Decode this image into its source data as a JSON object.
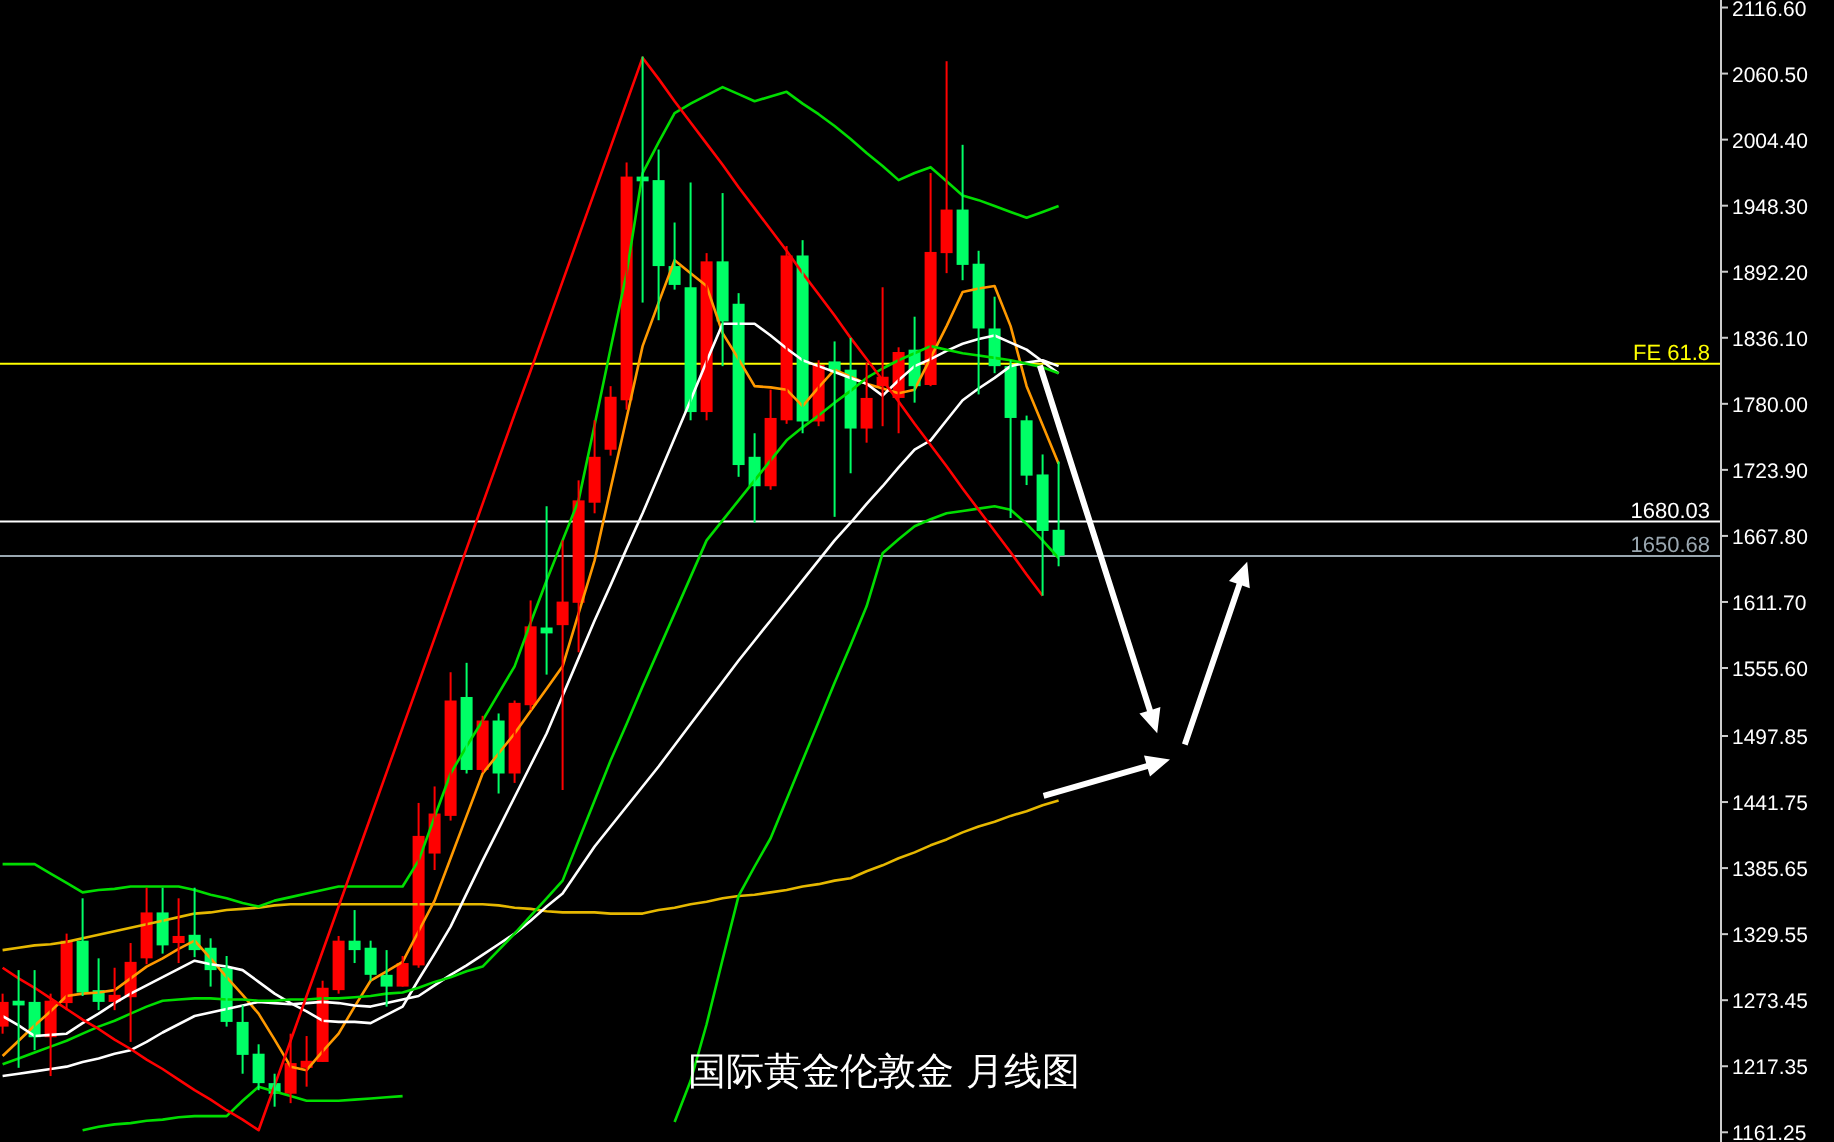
{
  "chart_data": {
    "type": "candlestick",
    "title": "国际黄金伦敦金  月线图",
    "categories": [
      null,
      null,
      null,
      null,
      null,
      null,
      null,
      null,
      null,
      null,
      null,
      null,
      null,
      null,
      null,
      null,
      null,
      null,
      null,
      null,
      null,
      null,
      null,
      null,
      null,
      null,
      null,
      null,
      null,
      null,
      null,
      null,
      null,
      null,
      null,
      null,
      null,
      null,
      null,
      null,
      null,
      null,
      null,
      null,
      null,
      null,
      null,
      null,
      null,
      null,
      null,
      null,
      null,
      null,
      null,
      null,
      null,
      null,
      null,
      null,
      null,
      null,
      null,
      null,
      null,
      null,
      null
    ],
    "ohlc": [
      [
        1251,
        1279,
        1245,
        1272
      ],
      [
        1273,
        1299,
        1216,
        1269
      ],
      [
        1272,
        1299,
        1231,
        1242
      ],
      [
        1242,
        1279,
        1209,
        1273
      ],
      [
        1271,
        1330,
        1265,
        1324
      ],
      [
        1324,
        1360,
        1277,
        1280
      ],
      [
        1282,
        1309,
        1265,
        1272
      ],
      [
        1272,
        1301,
        1265,
        1278
      ],
      [
        1276,
        1322,
        1238,
        1306
      ],
      [
        1309,
        1369,
        1304,
        1348
      ],
      [
        1348,
        1369,
        1313,
        1320
      ],
      [
        1322,
        1360,
        1305,
        1328
      ],
      [
        1329,
        1369,
        1310,
        1316
      ],
      [
        1318,
        1326,
        1285,
        1299
      ],
      [
        1301,
        1311,
        1251,
        1255
      ],
      [
        1255,
        1269,
        1211,
        1227
      ],
      [
        1228,
        1236,
        1197,
        1203
      ],
      [
        1203,
        1211,
        1183,
        1194
      ],
      [
        1194,
        1245,
        1186,
        1220
      ],
      [
        1216,
        1243,
        1200,
        1222
      ],
      [
        1221,
        1290,
        1221,
        1284
      ],
      [
        1282,
        1328,
        1279,
        1324
      ],
      [
        1324,
        1350,
        1305,
        1316
      ],
      [
        1318,
        1324,
        1290,
        1295
      ],
      [
        1295,
        1316,
        1268,
        1285
      ],
      [
        1285,
        1311,
        1285,
        1305
      ],
      [
        1303,
        1441,
        1301,
        1413
      ],
      [
        1398,
        1455,
        1384,
        1432
      ],
      [
        1430,
        1552,
        1426,
        1528
      ],
      [
        1531,
        1560,
        1466,
        1469
      ],
      [
        1469,
        1515,
        1467,
        1511
      ],
      [
        1511,
        1517,
        1449,
        1466
      ],
      [
        1466,
        1528,
        1458,
        1526
      ],
      [
        1524,
        1613,
        1520,
        1591
      ],
      [
        1590,
        1693,
        1550,
        1585
      ],
      [
        1592,
        1664,
        1452,
        1612
      ],
      [
        1611,
        1715,
        1569,
        1698
      ],
      [
        1696,
        1766,
        1687,
        1735
      ],
      [
        1741,
        1795,
        1736,
        1786
      ],
      [
        1783,
        1985,
        1775,
        1973
      ],
      [
        1973,
        2075,
        1866,
        1969
      ],
      [
        1970,
        1996,
        1851,
        1897
      ],
      [
        1897,
        1934,
        1877,
        1881
      ],
      [
        1879,
        1968,
        1766,
        1773
      ],
      [
        1773,
        1908,
        1766,
        1901
      ],
      [
        1901,
        1959,
        1812,
        1850
      ],
      [
        1865,
        1874,
        1718,
        1728
      ],
      [
        1735,
        1755,
        1679,
        1710
      ],
      [
        1710,
        1792,
        1707,
        1768
      ],
      [
        1766,
        1914,
        1763,
        1906
      ],
      [
        1906,
        1919,
        1755,
        1765
      ],
      [
        1765,
        1817,
        1761,
        1813
      ],
      [
        1816,
        1833,
        1684,
        1808
      ],
      [
        1809,
        1836,
        1721,
        1759
      ],
      [
        1759,
        1815,
        1747,
        1785
      ],
      [
        1795,
        1879,
        1761,
        1803
      ],
      [
        1785,
        1828,
        1755,
        1824
      ],
      [
        1826,
        1854,
        1781,
        1795
      ],
      [
        1796,
        1976,
        1795,
        1909
      ],
      [
        1908,
        2071,
        1891,
        1945
      ],
      [
        1945,
        2000,
        1885,
        1898
      ],
      [
        1899,
        1910,
        1788,
        1844
      ],
      [
        1844,
        1871,
        1806,
        1812
      ],
      [
        1812,
        1817,
        1683,
        1768
      ],
      [
        1766,
        1770,
        1711,
        1719
      ],
      [
        1720,
        1737,
        1617,
        1672
      ],
      [
        1673,
        1731,
        1642,
        1651
      ]
    ],
    "colors": [
      "#ff0000",
      "#00ff66",
      "#00ff66",
      "#ff0000",
      "#ff0000",
      "#00ff66",
      "#00ff66",
      "#ff0000",
      "#ff0000",
      "#ff0000",
      "#00ff66",
      "#ff0000",
      "#00ff66",
      "#00ff66",
      "#00ff66",
      "#00ff66",
      "#00ff66",
      "#00ff66",
      "#ff0000",
      "#ff0000",
      "#ff0000",
      "#ff0000",
      "#00ff66",
      "#00ff66",
      "#00ff66",
      "#ff0000",
      "#ff0000",
      "#ff0000",
      "#ff0000",
      "#00ff66",
      "#ff0000",
      "#00ff66",
      "#ff0000",
      "#ff0000",
      "#00ff66",
      "#ff0000",
      "#ff0000",
      "#ff0000",
      "#ff0000",
      "#ff0000",
      "#00ff66",
      "#00ff66",
      "#00ff66",
      "#00ff66",
      "#ff0000",
      "#00ff66",
      "#00ff66",
      "#00ff66",
      "#ff0000",
      "#ff0000",
      "#00ff66",
      "#ff0000",
      "#00ff66",
      "#00ff66",
      "#ff0000",
      "#ff0000",
      "#ff0000",
      "#00ff66",
      "#ff0000",
      "#ff0000",
      "#00ff66",
      "#00ff66",
      "#00ff66",
      "#00ff66",
      "#00ff66",
      "#00ff66",
      "#00ff66"
    ],
    "series": [
      {
        "type": "line",
        "color": "#e6b800",
        "values": [
          1316,
          1318,
          1320,
          1321,
          1323,
          1326,
          1329,
          1332,
          1335,
          1338,
          1341,
          1344,
          1347,
          1348,
          1350,
          1351,
          1352,
          1354,
          1355,
          1355,
          1355,
          1355,
          1355,
          1355,
          1355,
          1355,
          1355,
          1355,
          1355,
          1355,
          1355,
          1354,
          1352,
          1351,
          1349,
          1348,
          1348,
          1348,
          1347,
          1347,
          1347,
          1350,
          1352,
          1355,
          1357,
          1360,
          1362,
          1363,
          1365,
          1367,
          1370,
          1372,
          1375,
          1377,
          1383,
          1388,
          1394,
          1399,
          1405,
          1410,
          1416,
          1421,
          1425,
          1430,
          1434,
          1439,
          1443
        ]
      },
      {
        "type": "line",
        "color": "#ff9900",
        "values": [
          1226,
          1239,
          1252,
          1264,
          1277,
          1279,
          1280,
          1282,
          1292,
          1302,
          1309,
          1317,
          1324,
          1309,
          1293,
          1278,
          1262,
          1240,
          1217,
          1214,
          1230,
          1245,
          1268,
          1290,
          1298,
          1306,
          1332,
          1358,
          1394,
          1430,
          1466,
          1483,
          1500,
          1519,
          1538,
          1557,
          1602,
          1647,
          1708,
          1768,
          1829,
          1866,
          1902,
          1891,
          1880,
          1840,
          1818,
          1795,
          1794,
          1792,
          1778,
          1794,
          1809,
          1803,
          1797,
          1793,
          1789,
          1792,
          1819,
          1846,
          1875,
          1878,
          1880,
          1846,
          1795,
          1762,
          1729
        ]
      },
      {
        "type": "line",
        "color": "#ffffff",
        "values": [
          1260,
          1252,
          1243,
          1244,
          1245,
          1254,
          1262,
          1271,
          1279,
          1286,
          1293,
          1300,
          1307,
          1304,
          1302,
          1299,
          1289,
          1279,
          1271,
          1264,
          1256,
          1255,
          1255,
          1254,
          1261,
          1268,
          1291,
          1313,
          1336,
          1364,
          1392,
          1419,
          1446,
          1473,
          1500,
          1532,
          1564,
          1596,
          1626,
          1657,
          1687,
          1719,
          1751,
          1783,
          1816,
          1848,
          1848,
          1848,
          1838,
          1827,
          1817,
          1812,
          1807,
          1802,
          1797,
          1787,
          1800,
          1812,
          1818,
          1825,
          1831,
          1835,
          1838,
          1832,
          1826,
          1816,
          1806
        ]
      },
      {
        "type": "line",
        "color": "#ffffff",
        "values": [
          1209,
          1211,
          1213,
          1215,
          1217,
          1221,
          1224,
          1228,
          1231,
          1238,
          1246,
          1253,
          1260,
          1263,
          1266,
          1269,
          1272,
          1271,
          1270,
          1271,
          1272,
          1271,
          1269,
          1268,
          1271,
          1274,
          1277,
          1286,
          1295,
          1303,
          1312,
          1321,
          1330,
          1341,
          1353,
          1364,
          1384,
          1404,
          1421,
          1438,
          1455,
          1472,
          1490,
          1508,
          1526,
          1544,
          1562,
          1579,
          1596,
          1613,
          1630,
          1647,
          1664,
          1679,
          1695,
          1710,
          1726,
          1741,
          1749,
          1766,
          1783,
          1793,
          1802,
          1812,
          1815,
          1817,
          1812
        ]
      },
      {
        "type": "line",
        "color": "#00dd00",
        "values": [
          1389,
          1389,
          1389,
          1381,
          1373,
          1365,
          1367,
          1368,
          1370,
          1370,
          1370,
          1370,
          1367,
          1363,
          1360,
          1356,
          1353,
          1358,
          1361,
          1364,
          1367,
          1370,
          1370,
          1370,
          1370,
          1370,
          1392,
          1429,
          1466,
          1489,
          1511,
          1534,
          1557,
          1594,
          1630,
          1664,
          1698,
          1762,
          1827,
          1891,
          1976,
          2002,
          2027,
          2035,
          2042,
          2049,
          2043,
          2037,
          2041,
          2045,
          2035,
          2026,
          2016,
          2005,
          1993,
          1982,
          1970,
          1976,
          1981,
          1969,
          1957,
          1953,
          1948,
          1943,
          1938,
          1943,
          1948
        ]
      },
      {
        "type": "line",
        "color": "#00dd00",
        "values": [
          1219,
          1224,
          1229,
          1234,
          1239,
          1245,
          1251,
          1256,
          1262,
          1268,
          1273,
          1274,
          1275,
          1275,
          1274,
          1274,
          1273,
          1273,
          1274,
          1274,
          1275,
          1275,
          1276,
          1277,
          1279,
          1280,
          1284,
          1289,
          1293,
          1298,
          1302,
          1316,
          1330,
          1345,
          1360,
          1375,
          1409,
          1443,
          1477,
          1508,
          1540,
          1571,
          1602,
          1633,
          1664,
          1681,
          1698,
          1715,
          1732,
          1749,
          1760,
          1770,
          1781,
          1791,
          1802,
          1810,
          1817,
          1823,
          1829,
          1826,
          1823,
          1821,
          1819,
          1817,
          1814,
          1811,
          1806
        ]
      },
      {
        "type": "line",
        "color": "#00dd00",
        "values": [
          null,
          null,
          null,
          null,
          null,
          1163,
          1166,
          1168,
          1169,
          1171,
          1172,
          1174,
          1175,
          1175,
          1175,
          1188,
          1200,
          1196,
          1192,
          1188,
          1188,
          1188,
          1189,
          1190,
          1191,
          1192,
          null,
          null,
          null,
          null,
          null,
          null,
          null,
          null,
          null,
          null,
          null,
          null,
          null,
          null,
          null,
          null,
          1170,
          1205,
          1253,
          1308,
          1362,
          1387,
          1411,
          1444,
          1477,
          1510,
          1543,
          1575,
          1608,
          1653,
          1665,
          1676,
          1682,
          1687,
          1689,
          1691,
          1693,
          1690,
          1678,
          1664,
          1649
        ]
      },
      {
        "type": "line",
        "color": "#ff0000",
        "values": [
          1301,
          1292,
          1284,
          1275,
          1266,
          1257,
          1249,
          1240,
          1232,
          1223,
          1215,
          1206,
          1197,
          1189,
          1180,
          1172,
          1163,
          1201,
          1239,
          1277,
          1315,
          1353,
          1391,
          1429,
          1467,
          1505,
          1543,
          1581,
          1619,
          1657,
          1695,
          1733,
          1771,
          1808,
          1846,
          1884,
          1922,
          1960,
          1998,
          2036,
          2074,
          2056,
          2037,
          2019,
          2001,
          1983,
          1964,
          1946,
          1928,
          1910,
          1891,
          1873,
          1855,
          1836,
          1818,
          1800,
          1782,
          1763,
          1745,
          1727,
          1708,
          1690,
          1672,
          1654,
          1635,
          1617,
          null
        ]
      }
    ],
    "ylim": [
      1153,
      2123
    ],
    "yticks": [
      {
        "value": 2116.6,
        "label": "2116.60"
      },
      {
        "value": 2060.5,
        "label": "2060.50"
      },
      {
        "value": 2004.4,
        "label": "2004.40"
      },
      {
        "value": 1948.3,
        "label": "1948.30"
      },
      {
        "value": 1892.2,
        "label": "1892.20"
      },
      {
        "value": 1836.1,
        "label": "1836.10"
      },
      {
        "value": 1780,
        "label": "1780.00"
      },
      {
        "value": 1723.9,
        "label": "1723.90"
      },
      {
        "value": 1667.8,
        "label": "1667.80"
      },
      {
        "value": 1611.7,
        "label": "1611.70"
      },
      {
        "value": 1555.6,
        "label": "1555.60"
      },
      {
        "value": 1497.85,
        "label": "1497.85"
      },
      {
        "value": 1441.75,
        "label": "1441.75"
      },
      {
        "value": 1385.65,
        "label": "1385.65"
      },
      {
        "value": 1329.55,
        "label": "1329.55"
      },
      {
        "value": 1273.45,
        "label": "1273.45"
      },
      {
        "value": 1217.35,
        "label": "1217.35"
      },
      {
        "value": 1161.25,
        "label": "1161.25"
      }
    ],
    "ref_lines": [
      {
        "axis": "y",
        "value": 1814,
        "label": "FE 61.8",
        "color": "#ffff00"
      },
      {
        "axis": "y",
        "value": 1680.03,
        "label": "1680.03",
        "color": "#ffffff"
      },
      {
        "axis": "y",
        "value": 1650.68,
        "label": "1650.68",
        "color": "#9aa7b0"
      }
    ],
    "tick_labels": "y"
  }
}
